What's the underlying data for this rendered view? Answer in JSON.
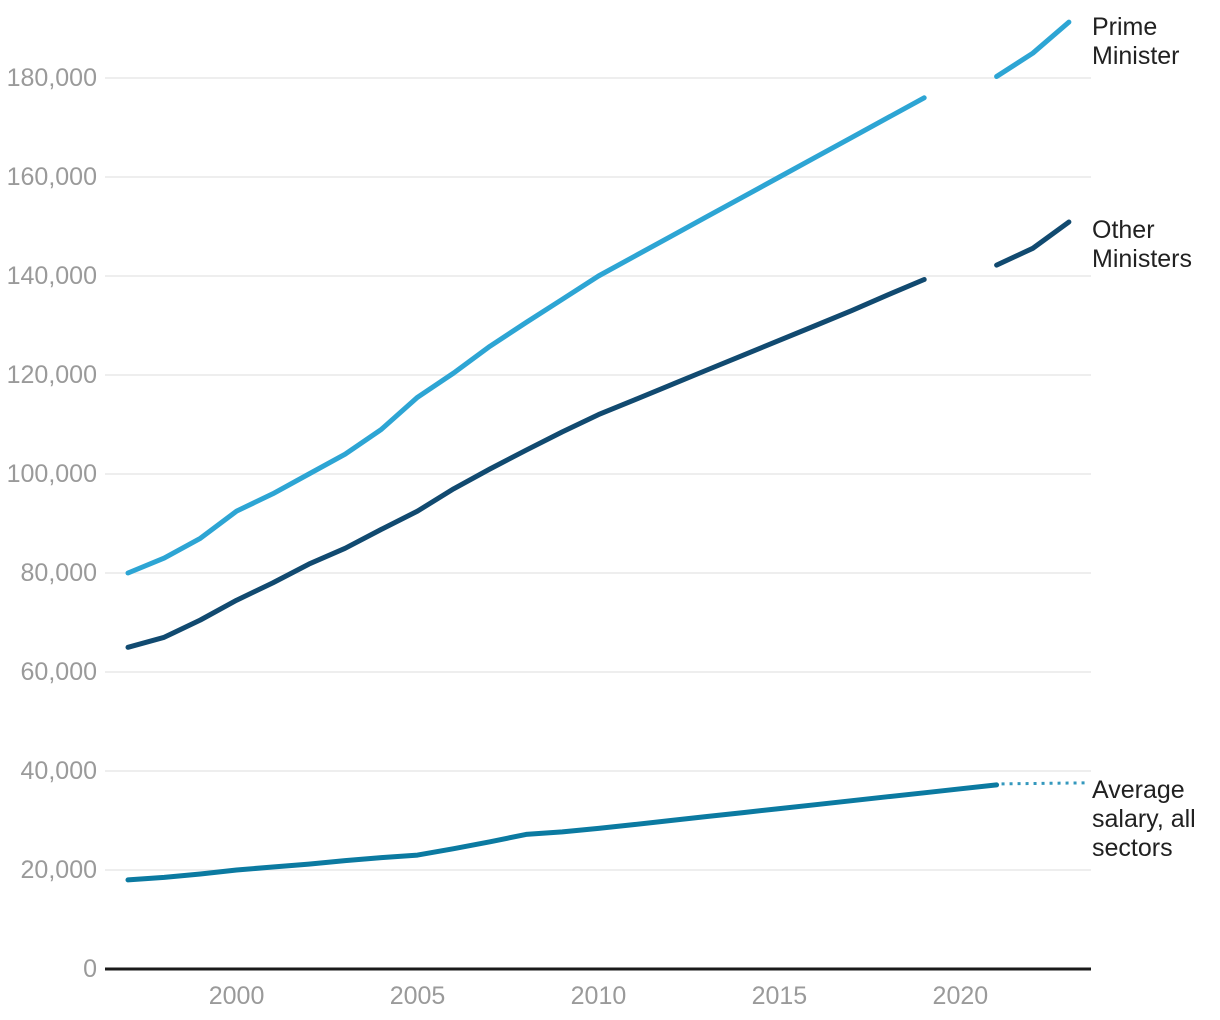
{
  "chart_data": {
    "type": "line",
    "title": "",
    "x_axis": {
      "range": [
        1997,
        2023
      ],
      "ticks": [
        2000,
        2005,
        2010,
        2015,
        2020
      ],
      "tick_labels": [
        "2000",
        "2005",
        "2010",
        "2015",
        "2020"
      ]
    },
    "y_axis": {
      "range": [
        0,
        180000
      ],
      "ticks": [
        0,
        20000,
        40000,
        60000,
        80000,
        100000,
        120000,
        140000,
        160000,
        180000
      ],
      "tick_labels": [
        "0",
        "20,000",
        "40,000",
        "60,000",
        "80,000",
        "100,000",
        "120,000",
        "140,000",
        "160,000",
        "180,000"
      ],
      "grid": true
    },
    "colors": {
      "prime_minister": "#2da5d4",
      "other_ministers": "#114a70",
      "average_salary": "#0b7aa1",
      "leader_dots": "#3498bd",
      "gridline": "#e9e9e9",
      "axis": "#1a1a1a",
      "tick_text": "#9a9a9a",
      "label_text": "#212121"
    },
    "note": "Lines for Prime Minister and Other Ministers have a data gap at 2020",
    "series": [
      {
        "name": "Prime Minister",
        "label_lines": [
          "Prime",
          "Minister"
        ],
        "color_key": "prime_minister",
        "dotted_leader": false,
        "years": [
          1997,
          1998,
          1999,
          2000,
          2001,
          2002,
          2003,
          2004,
          2005,
          2006,
          2007,
          2008,
          2009,
          2010,
          2011,
          2012,
          2013,
          2014,
          2015,
          2016,
          2017,
          2018,
          2019,
          2020,
          2021,
          2022,
          2023
        ],
        "values": [
          80000,
          83000,
          87000,
          92500,
          96000,
          100000,
          104000,
          109000,
          115500,
          120400,
          125800,
          130600,
          135300,
          140000,
          144000,
          148000,
          152000,
          156000,
          160000,
          164000,
          168000,
          172000,
          176000,
          null,
          180300,
          185000,
          191300
        ]
      },
      {
        "name": "Other Ministers",
        "label_lines": [
          "Other",
          "Ministers"
        ],
        "color_key": "other_ministers",
        "dotted_leader": false,
        "years": [
          1997,
          1998,
          1999,
          2000,
          2001,
          2002,
          2003,
          2004,
          2005,
          2006,
          2007,
          2008,
          2009,
          2010,
          2011,
          2012,
          2013,
          2014,
          2015,
          2016,
          2017,
          2018,
          2019,
          2020,
          2021,
          2022,
          2023
        ],
        "values": [
          65000,
          67000,
          70500,
          74500,
          78000,
          81800,
          85000,
          88800,
          92500,
          97000,
          101000,
          104800,
          108500,
          112000,
          115000,
          118000,
          121000,
          124000,
          127000,
          130000,
          133000,
          136200,
          139300,
          null,
          142200,
          145600,
          150900
        ]
      },
      {
        "name": "Average salary, all sectors",
        "label_lines": [
          "Average",
          "salary, all",
          "sectors"
        ],
        "color_key": "average_salary",
        "dotted_leader": true,
        "years": [
          1997,
          1998,
          1999,
          2000,
          2001,
          2002,
          2003,
          2004,
          2005,
          2006,
          2007,
          2008,
          2009,
          2010,
          2011,
          2012,
          2013,
          2014,
          2015,
          2016,
          2017,
          2018,
          2019,
          2020,
          2021
        ],
        "values": [
          18000,
          18500,
          19200,
          20000,
          20600,
          21200,
          21900,
          22500,
          23000,
          24300,
          25700,
          27200,
          27700,
          28400,
          29200,
          30000,
          30800,
          31600,
          32400,
          33200,
          34000,
          34800,
          35600,
          36400,
          37200
        ]
      }
    ]
  }
}
